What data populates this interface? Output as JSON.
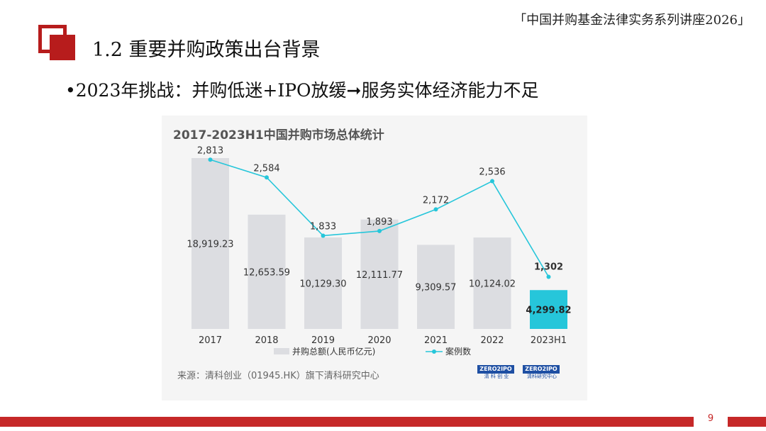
{
  "header": {
    "series_title": "「中国并购基金法律实务系列讲座2026」",
    "section_title": "1.2 重要并购政策出台背景",
    "bullet": "•2023年挑战：并购低迷+IPO放缓➞服务实体经济能力不足"
  },
  "colors": {
    "accent_red": "#b71c1c",
    "bar_gray": "#dcdde1",
    "bar_highlight": "#26c6da",
    "line_cyan": "#26c6da"
  },
  "chart_data": {
    "type": "bar",
    "title": "2017-2023H1中国并购市场总体统计",
    "categories": [
      "2017",
      "2018",
      "2019",
      "2020",
      "2021",
      "2022",
      "2023H1"
    ],
    "series": [
      {
        "name": "并购总额(人民币亿元)",
        "type": "bar",
        "values": [
          18919.23,
          12653.59,
          10129.3,
          12111.77,
          9309.57,
          10124.02,
          4299.82
        ],
        "labels": [
          "18,919.23",
          "12,653.59",
          "10,129.30",
          "12,111.77",
          "9,309.57",
          "10,124.02",
          "4,299.82"
        ]
      },
      {
        "name": "案例数",
        "type": "line",
        "values": [
          2813,
          2584,
          1833,
          1893,
          2172,
          2536,
          1302
        ],
        "labels": [
          "2,813",
          "2,584",
          "1,833",
          "1,893",
          "2,172",
          "2,536",
          "1,302"
        ]
      }
    ],
    "legend": "bottom",
    "grid": false
  },
  "source": {
    "text": "来源：清科创业（01945.HK）旗下清科研究中心",
    "logos": [
      {
        "brand": "ZERO2IPO",
        "sub": "清 科 创 业"
      },
      {
        "brand": "ZERO2IPO",
        "sub": "清科研究中心"
      }
    ]
  },
  "footer": {
    "page_number": "9"
  }
}
